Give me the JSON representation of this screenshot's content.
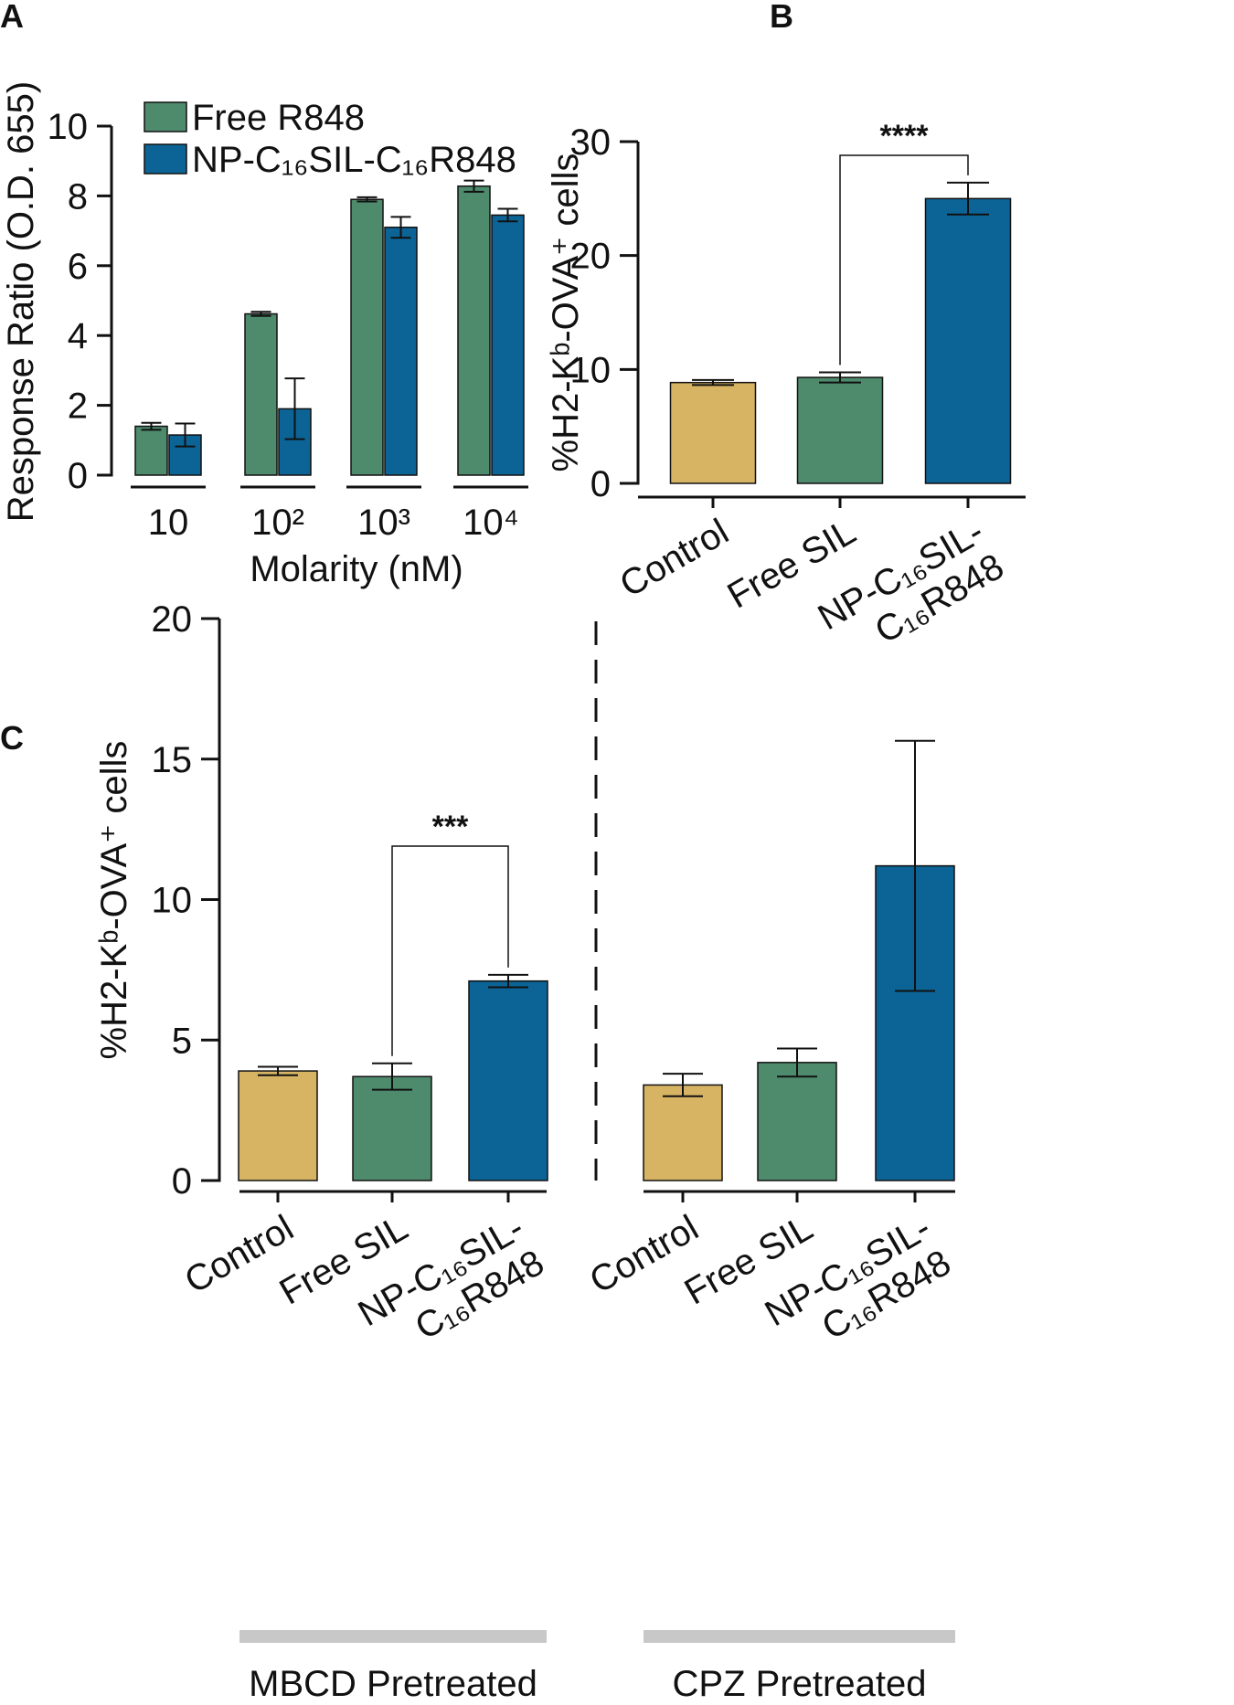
{
  "colors": {
    "free_r848": "#4e8a6c",
    "np": "#0c6496",
    "control": "#d7b464",
    "free_sil": "#4e8a6c",
    "axis": "#111111",
    "group_bar": "#c8c8c8"
  },
  "chart_data": [
    {
      "panel": "A",
      "type": "bar",
      "title": "",
      "xlabel": "Molarity (nM)",
      "ylabel": "Response Ratio (O.D. 655)",
      "ylim": [
        0,
        10
      ],
      "yticks": [
        "0",
        "2",
        "4",
        "6",
        "8",
        "10"
      ],
      "categories": [
        "10",
        "10²",
        "10³",
        "10⁴"
      ],
      "legend": [
        "Free R848",
        "NP-C₁₆SIL-C₁₆R848"
      ],
      "legend_position": "top-left",
      "series": [
        {
          "name": "Free R848",
          "color": "#4e8a6c",
          "values": [
            1.4,
            4.62,
            7.9,
            8.28
          ],
          "errors": [
            0.1,
            0.06,
            0.06,
            0.16
          ]
        },
        {
          "name": "NP-C₁₆SIL-C₁₆R848",
          "color": "#0c6496",
          "values": [
            1.15,
            1.9,
            7.1,
            7.45
          ],
          "errors": [
            0.33,
            0.87,
            0.3,
            0.18
          ]
        }
      ]
    },
    {
      "panel": "B",
      "type": "bar",
      "title": "",
      "xlabel": "",
      "ylabel": "%H2-Kᵇ-OVA⁺ cells",
      "ylim": [
        0,
        30
      ],
      "yticks": [
        "0",
        "10",
        "20",
        "30"
      ],
      "categories": [
        "Control",
        "Free SIL",
        "NP-C₁₆SIL-\nC₁₆R848"
      ],
      "values": [
        8.85,
        9.3,
        25.0
      ],
      "errors": [
        0.22,
        0.45,
        1.4
      ],
      "colors": [
        "#d7b464",
        "#4e8a6c",
        "#0c6496"
      ],
      "significance": {
        "from": "Free SIL",
        "to": "NP-C₁₆SIL-\nC₁₆R848",
        "label": "****"
      }
    },
    {
      "panel": "C",
      "type": "bar",
      "title": "",
      "xlabel": "",
      "ylabel": "%H2-Kᵇ-OVA⁺ cells",
      "ylim": [
        0,
        20
      ],
      "yticks": [
        "0",
        "5",
        "10",
        "15",
        "20"
      ],
      "groups": [
        {
          "name": "MBCD Pretreated",
          "categories": [
            "Control",
            "Free SIL",
            "NP-C₁₆SIL-\nC₁₆R848"
          ],
          "values": [
            3.9,
            3.7,
            7.1
          ],
          "errors": [
            0.15,
            0.47,
            0.22
          ],
          "colors": [
            "#d7b464",
            "#4e8a6c",
            "#0c6496"
          ],
          "significance": {
            "from": "Free SIL",
            "to": "NP-C₁₆SIL-\nC₁₆R848",
            "label": "***"
          }
        },
        {
          "name": "CPZ Pretreated",
          "categories": [
            "Control",
            "Free SIL",
            "NP-C₁₆SIL-\nC₁₆R848"
          ],
          "values": [
            3.4,
            4.2,
            11.2
          ],
          "errors": [
            0.4,
            0.5,
            4.45
          ],
          "colors": [
            "#d7b464",
            "#4e8a6c",
            "#0c6496"
          ]
        }
      ]
    }
  ]
}
